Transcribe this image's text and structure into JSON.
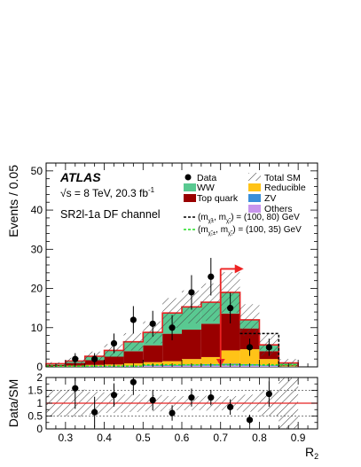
{
  "chart_data": {
    "type": "bar",
    "experiment": "ATLAS",
    "energy_label": "√s = 8 TeV, 20.3 fb",
    "energy_label_sup": "-1",
    "region_label": "SR2l-1a DF channel",
    "xlabel": "R",
    "xlabel_sub": "2",
    "ylabel": "Events / 0.05",
    "ratio_ylabel": "Data/SM",
    "xlim": [
      0.25,
      0.95
    ],
    "ylim": [
      0,
      52
    ],
    "ratio_ylim": [
      0,
      2
    ],
    "xticks": [
      "0.3",
      "0.4",
      "0.5",
      "0.6",
      "0.7",
      "0.8",
      "0.9"
    ],
    "yticks": [
      "0",
      "10",
      "20",
      "30",
      "40",
      "50"
    ],
    "ratio_yticks": [
      "0",
      "0.5",
      "1",
      "1.5",
      "2"
    ],
    "bin_edges": [
      0.25,
      0.3,
      0.35,
      0.4,
      0.45,
      0.5,
      0.55,
      0.6,
      0.65,
      0.7,
      0.75,
      0.8,
      0.85,
      0.9
    ],
    "stack": [
      {
        "name": "Others",
        "color": "#c895ec",
        "values": [
          0.05,
          0.05,
          0.1,
          0.1,
          0.15,
          0.2,
          0.25,
          0.3,
          0.3,
          0.4,
          0.3,
          0.2,
          0.05
        ]
      },
      {
        "name": "ZV",
        "color": "#3a8fd9",
        "values": [
          0.05,
          0.05,
          0.1,
          0.1,
          0.15,
          0.2,
          0.2,
          0.3,
          0.4,
          0.4,
          0.4,
          0.2,
          0.05
        ]
      },
      {
        "name": "Reducible",
        "color": "#ffc317",
        "values": [
          0.1,
          0.2,
          0.3,
          0.4,
          0.6,
          0.8,
          1.0,
          1.4,
          1.8,
          3.4,
          3.8,
          1.6,
          0.2
        ]
      },
      {
        "name": "Top quark",
        "color": "#990000",
        "values": [
          0.3,
          0.7,
          1.2,
          2.0,
          3.1,
          4.3,
          7.0,
          7.5,
          8.5,
          9.4,
          5.3,
          2.0,
          0.2
        ]
      },
      {
        "name": "WW",
        "color": "#59c991",
        "values": [
          0.3,
          0.5,
          1.0,
          1.6,
          2.4,
          3.3,
          5.3,
          5.8,
          5.5,
          5.4,
          2.2,
          1.6,
          0.5
        ]
      }
    ],
    "total_sm": [
      0.8,
      1.5,
      2.7,
      4.2,
      6.4,
      8.8,
      13.75,
      15.3,
      16.5,
      19.0,
      12.0,
      5.6,
      1.0
    ],
    "total_sm_unc": [
      0.4,
      0.8,
      1.2,
      1.6,
      2.2,
      2.8,
      3.8,
      4.2,
      4.8,
      5.2,
      4.0,
      2.8,
      1.0
    ],
    "data": {
      "x": [
        0.325,
        0.375,
        0.425,
        0.475,
        0.525,
        0.575,
        0.625,
        0.675,
        0.725,
        0.775,
        0.825
      ],
      "y": [
        2,
        2,
        6,
        12,
        11,
        10,
        19,
        23,
        15,
        5,
        5
      ],
      "yerr": [
        1.5,
        1.5,
        2.5,
        3.5,
        3.3,
        3.2,
        4.4,
        4.8,
        3.9,
        2.2,
        2.2
      ]
    },
    "signals": [
      {
        "label": "(m",
        "sub1": "χ̃±",
        "sub2": "χ̃₁",
        "values_text": ") = (100, 80) GeV",
        "color": "#000000",
        "x": [
          0.75,
          0.8,
          0.85
        ],
        "y": [
          8.5,
          8.5,
          0
        ]
      },
      {
        "label": "(m",
        "sub1": "χ̃₁±",
        "sub2": "χ̃₁",
        "values_text": ") = (100, 35) GeV",
        "color": "#22dd22",
        "x": [
          0.25,
          0.5,
          0.9
        ],
        "y": [
          0.2,
          0.5,
          0.5
        ]
      }
    ],
    "ratio": {
      "x": [
        0.325,
        0.375,
        0.425,
        0.475,
        0.525,
        0.575,
        0.625,
        0.675,
        0.725,
        0.775,
        0.825
      ],
      "y": [
        1.58,
        0.65,
        1.32,
        1.82,
        1.12,
        0.62,
        1.22,
        1.22,
        0.85,
        0.35,
        1.36
      ],
      "yerr": [
        0.8,
        0.6,
        0.45,
        0.5,
        0.4,
        0.3,
        0.35,
        0.3,
        0.3,
        0.2,
        0.5
      ],
      "ref_line": 1
    },
    "cut": {
      "x": 0.7,
      "direction": "right",
      "color": "#ee2222"
    },
    "legend": {
      "placement": "top-right",
      "entries": [
        "Data",
        "Total SM",
        "WW",
        "Reducible",
        "Top quark",
        "ZV",
        "Others"
      ]
    }
  }
}
